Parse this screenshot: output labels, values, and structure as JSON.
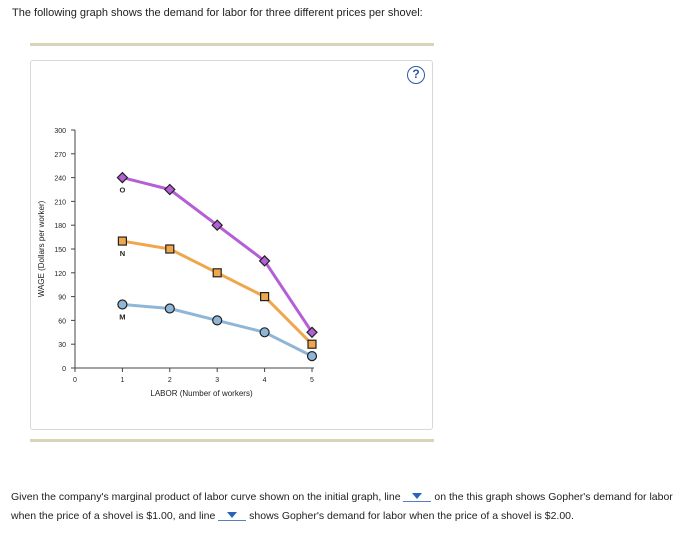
{
  "intro_text": "The following graph shows the demand for labor for three different prices per shovel:",
  "help_label": "?",
  "question": {
    "part1": "Given the company's marginal product of labor curve shown on the initial graph, line",
    "part2": "on the this graph shows Gopher's demand for labor when the price of a shovel is $1.00, and line",
    "part3": "shows Gopher's demand for labor when the price of a shovel is $2.00."
  },
  "chart_data": {
    "type": "line",
    "xlabel": "LABOR (Number of workers)",
    "ylabel": "WAGE (Dollars per worker)",
    "xlim": [
      0,
      5
    ],
    "ylim": [
      0,
      300
    ],
    "x_ticks": [
      0,
      1,
      2,
      3,
      4,
      5
    ],
    "y_ticks": [
      0,
      30,
      60,
      90,
      120,
      150,
      180,
      210,
      240,
      270,
      300
    ],
    "x": [
      1,
      2,
      3,
      4,
      5
    ],
    "series": [
      {
        "name": "O",
        "color": "#b45fd6",
        "marker": "diamond",
        "values": [
          240,
          225,
          180,
          135,
          45
        ]
      },
      {
        "name": "N",
        "color": "#f0a64c",
        "marker": "square",
        "values": [
          160,
          150,
          120,
          90,
          30
        ]
      },
      {
        "name": "M",
        "color": "#8fb6d6",
        "marker": "circle",
        "values": [
          80,
          75,
          60,
          45,
          15
        ]
      }
    ],
    "grid": false
  }
}
